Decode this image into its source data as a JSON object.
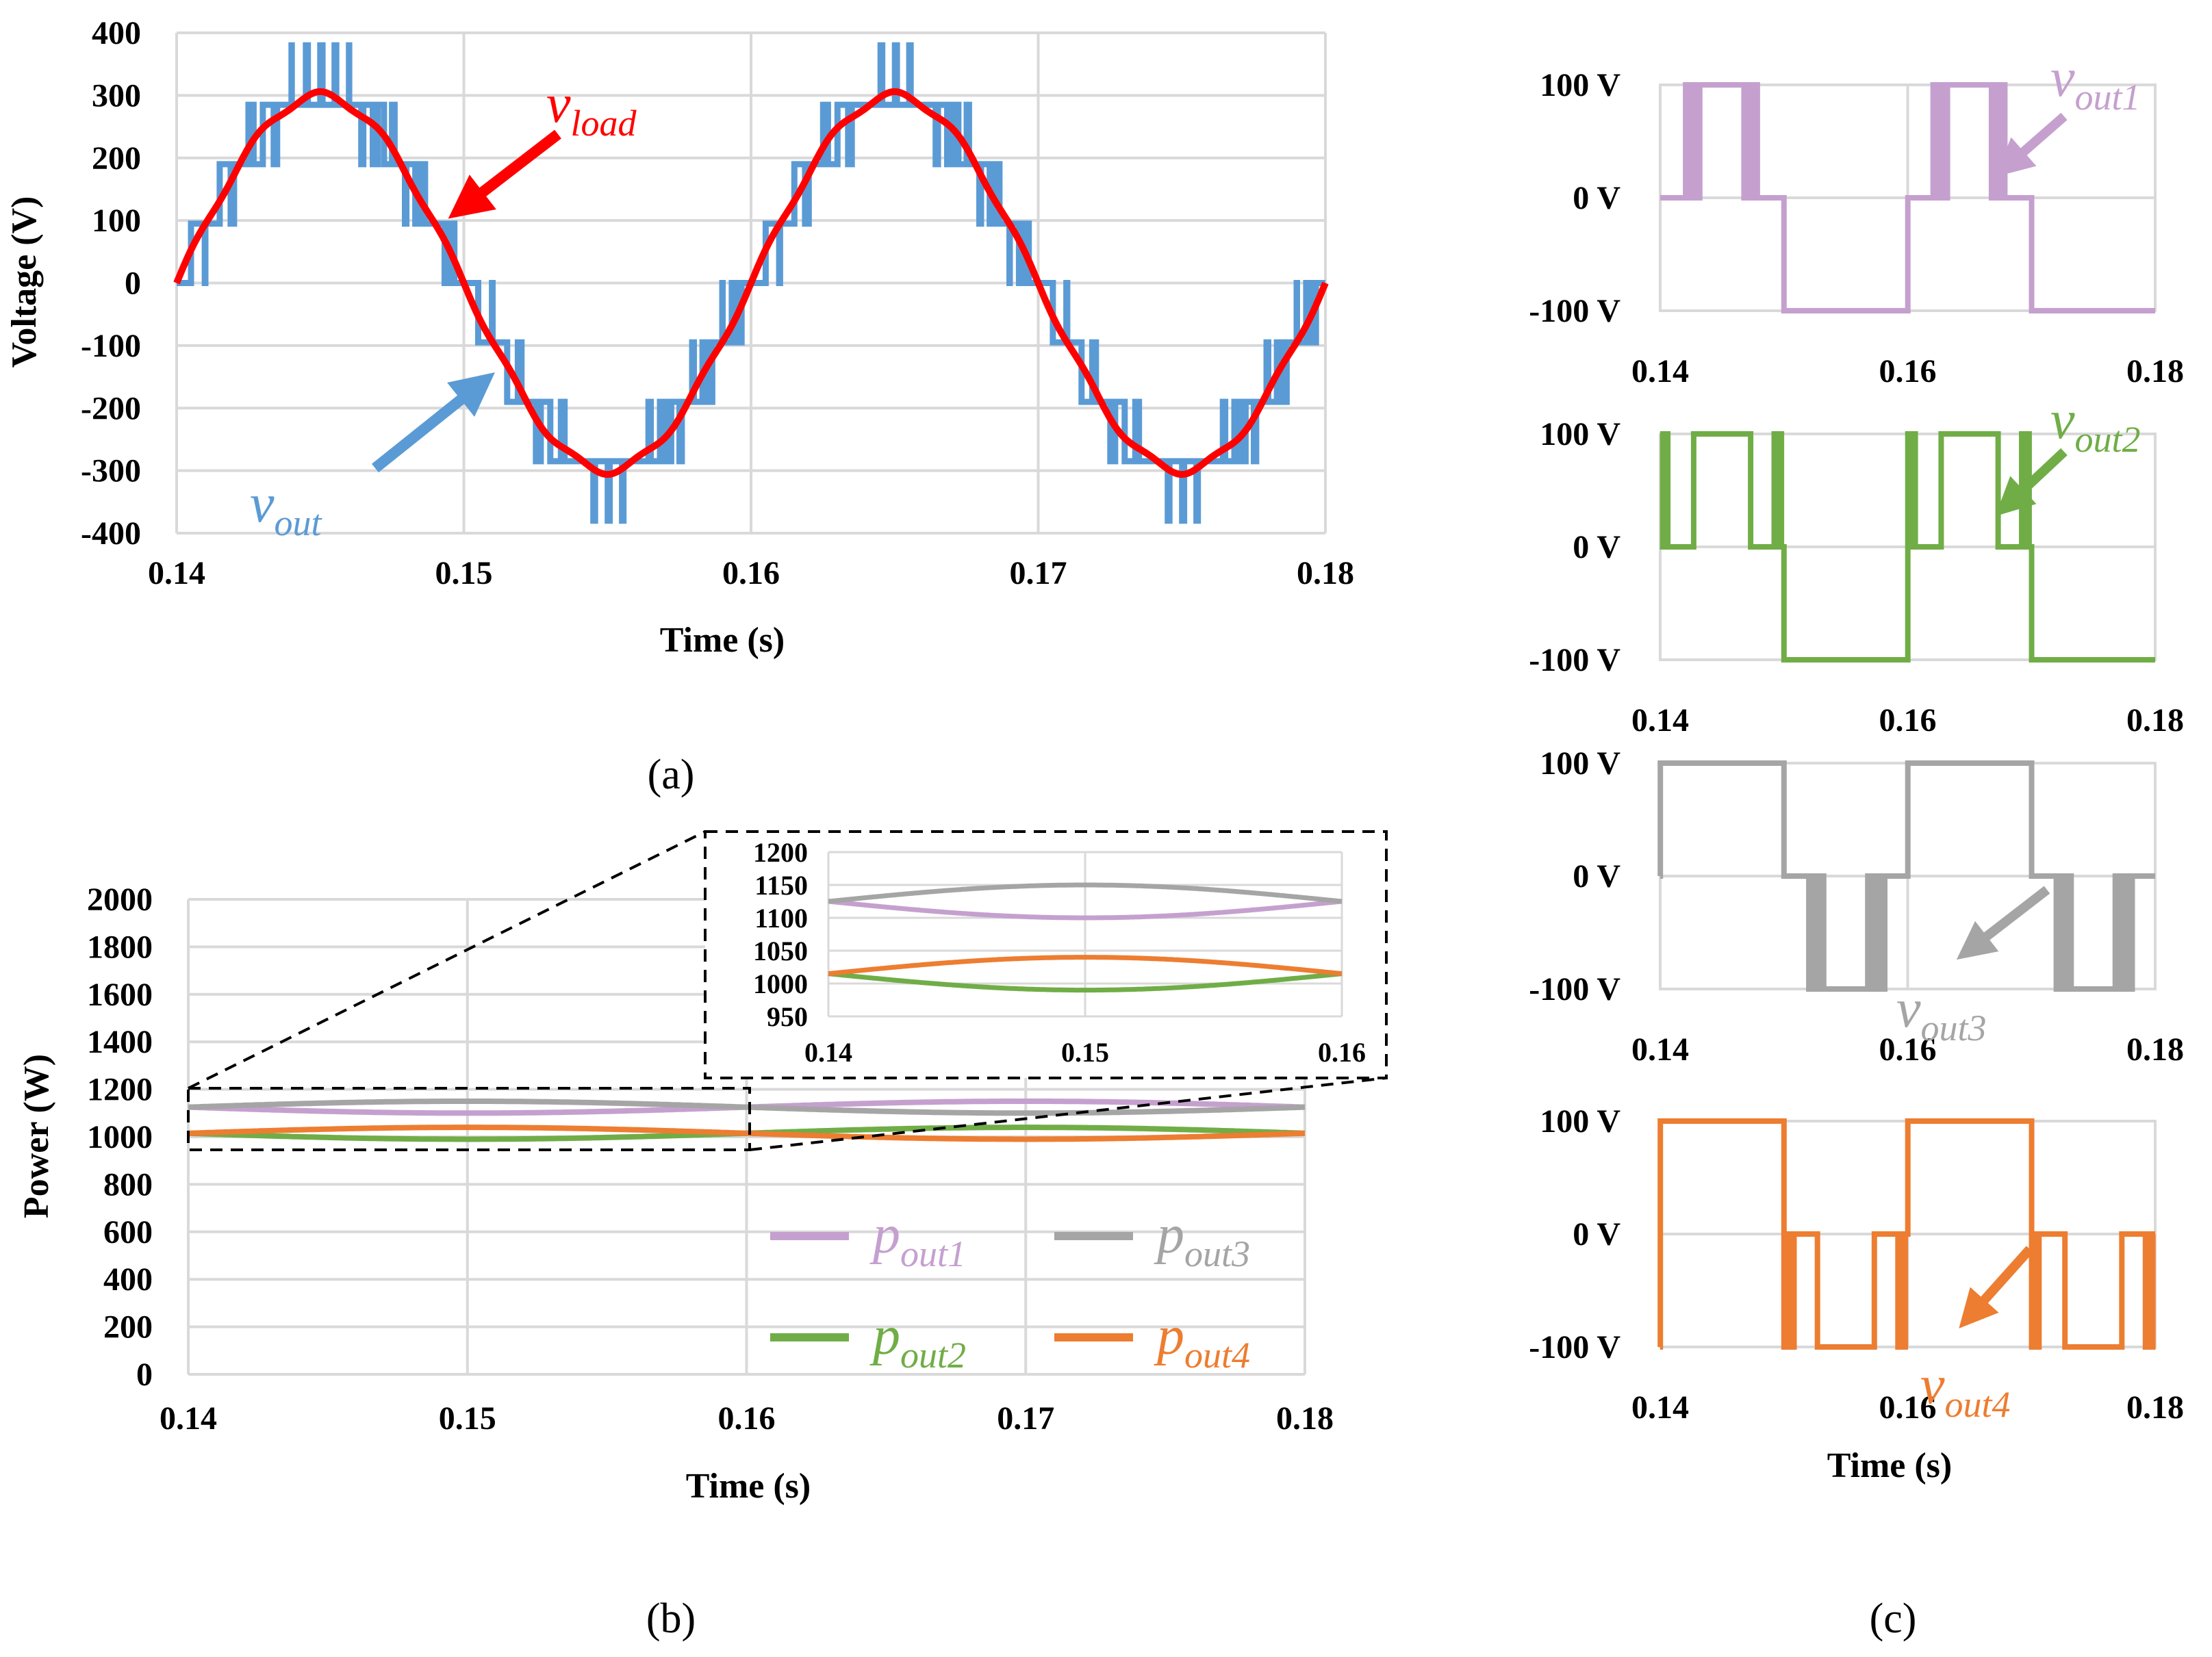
{
  "chart_data": [
    {
      "id": "a",
      "type": "line",
      "caption": "(a)",
      "xlabel": "Time (s)",
      "ylabel": "Voltage (V)",
      "xlim": [
        0.14,
        0.18
      ],
      "ylim": [
        -400,
        400
      ],
      "xticks": [
        "0.14",
        "0.15",
        "0.16",
        "0.17",
        "0.18"
      ],
      "yticks": [
        "400",
        "300",
        "200",
        "100",
        "0",
        "-100",
        "-200",
        "-300",
        "-400"
      ],
      "grid": true,
      "series": [
        {
          "name_main": "v",
          "name_sub": "out",
          "color": "#5b9bd5",
          "shape": "multilevel staircase, 9 levels (±380, ±285, ±190, ±95, 0), period 0.02 s, PWM transitions between adjacent levels"
        },
        {
          "name_main": "v",
          "name_sub": "load",
          "color": "#ff0000",
          "shape": "sine, amplitude 300 V, period 0.02 s, zero crossing at 0.14 s"
        }
      ]
    },
    {
      "id": "b",
      "type": "line",
      "caption": "(b)",
      "xlabel": "Time (s)",
      "ylabel": "Power (W)",
      "xlim": [
        0.14,
        0.18
      ],
      "ylim": [
        0,
        2000
      ],
      "xticks": [
        "0.14",
        "0.15",
        "0.16",
        "0.17",
        "0.18"
      ],
      "yticks": [
        "2000",
        "1800",
        "1600",
        "1400",
        "1200",
        "1000",
        "800",
        "600",
        "400",
        "200",
        "0"
      ],
      "grid": true,
      "legend": "bottom-right",
      "series": [
        {
          "name_main": "p",
          "name_sub": "out1",
          "color": "#c5a0cf",
          "mean": 1125,
          "amplitude": 25,
          "phase_deg": 180
        },
        {
          "name_main": "p",
          "name_sub": "out2",
          "color": "#70ad47",
          "mean": 1015,
          "amplitude": 25,
          "phase_deg": 180
        },
        {
          "name_main": "p",
          "name_sub": "out3",
          "color": "#a5a5a5",
          "mean": 1125,
          "amplitude": 25,
          "phase_deg": 0
        },
        {
          "name_main": "p",
          "name_sub": "out4",
          "color": "#ed7d31",
          "mean": 1015,
          "amplitude": 25,
          "phase_deg": 0
        }
      ],
      "inset": {
        "xlim": [
          0.14,
          0.16
        ],
        "ylim": [
          950,
          1200
        ],
        "xticks": [
          "0.14",
          "0.15",
          "0.16"
        ],
        "yticks": [
          "1200",
          "1150",
          "1100",
          "1050",
          "1000",
          "950"
        ]
      }
    },
    {
      "id": "c",
      "type": "line",
      "caption": "(c)",
      "xlabel": "Time (s)",
      "xlim": [
        0.14,
        0.18
      ],
      "ylim": [
        -100,
        100
      ],
      "xticks": [
        "0.14",
        "0.16",
        "0.18"
      ],
      "yticks": [
        "100 V",
        "0 V",
        "-100 V"
      ],
      "subplots": [
        {
          "name_main": "v",
          "name_sub": "out1",
          "color": "#c5a0cf",
          "levels": "+100/0 in positive half, -100 in negative half"
        },
        {
          "name_main": "v",
          "name_sub": "out2",
          "color": "#70ad47",
          "levels": "0/+100 PWM near positive peak, -100 in negative half"
        },
        {
          "name_main": "v",
          "name_sub": "out3",
          "color": "#a5a5a5",
          "levels": "+100 in positive half, 0/-100 PWM in negative half"
        },
        {
          "name_main": "v",
          "name_sub": "out4",
          "color": "#ed7d31",
          "levels": "+100 in positive half, 0/-100 PWM near negative peak"
        }
      ]
    }
  ]
}
